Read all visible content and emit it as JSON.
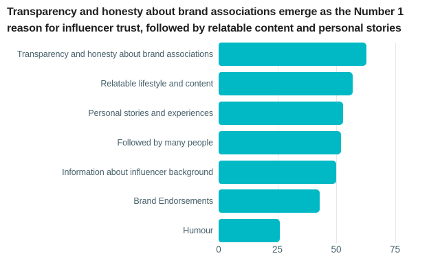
{
  "title": {
    "line1": "Transparency and honesty about brand associations emerge as the Number 1",
    "line2": "reason for influencer trust, followed by relatable content and personal stories"
  },
  "chart_data": {
    "type": "bar",
    "orientation": "horizontal",
    "title": "Transparency and honesty about brand associations emerge as the Number 1 reason for influencer trust, followed by relatable content and personal stories",
    "categories": [
      "Transparency and honesty about brand associations",
      "Relatable lifestyle and content",
      "Personal stories and experiences",
      "Followed by many people",
      "Information about influencer background",
      "Brand Endorsements",
      "Humour"
    ],
    "values": [
      63,
      57,
      53,
      52,
      50,
      43,
      26
    ],
    "xlabel": "",
    "ylabel": "",
    "xticks": [
      0,
      25,
      50,
      75
    ],
    "xlim": [
      0,
      89
    ],
    "grid": "vertical",
    "legend": "none",
    "colors": {
      "bar": "#00b9c5",
      "category_label": "#47616b",
      "tick_label": "#47616b",
      "gridline": "#e7e9e9",
      "title": "#202020",
      "background": "#ffffff"
    }
  }
}
